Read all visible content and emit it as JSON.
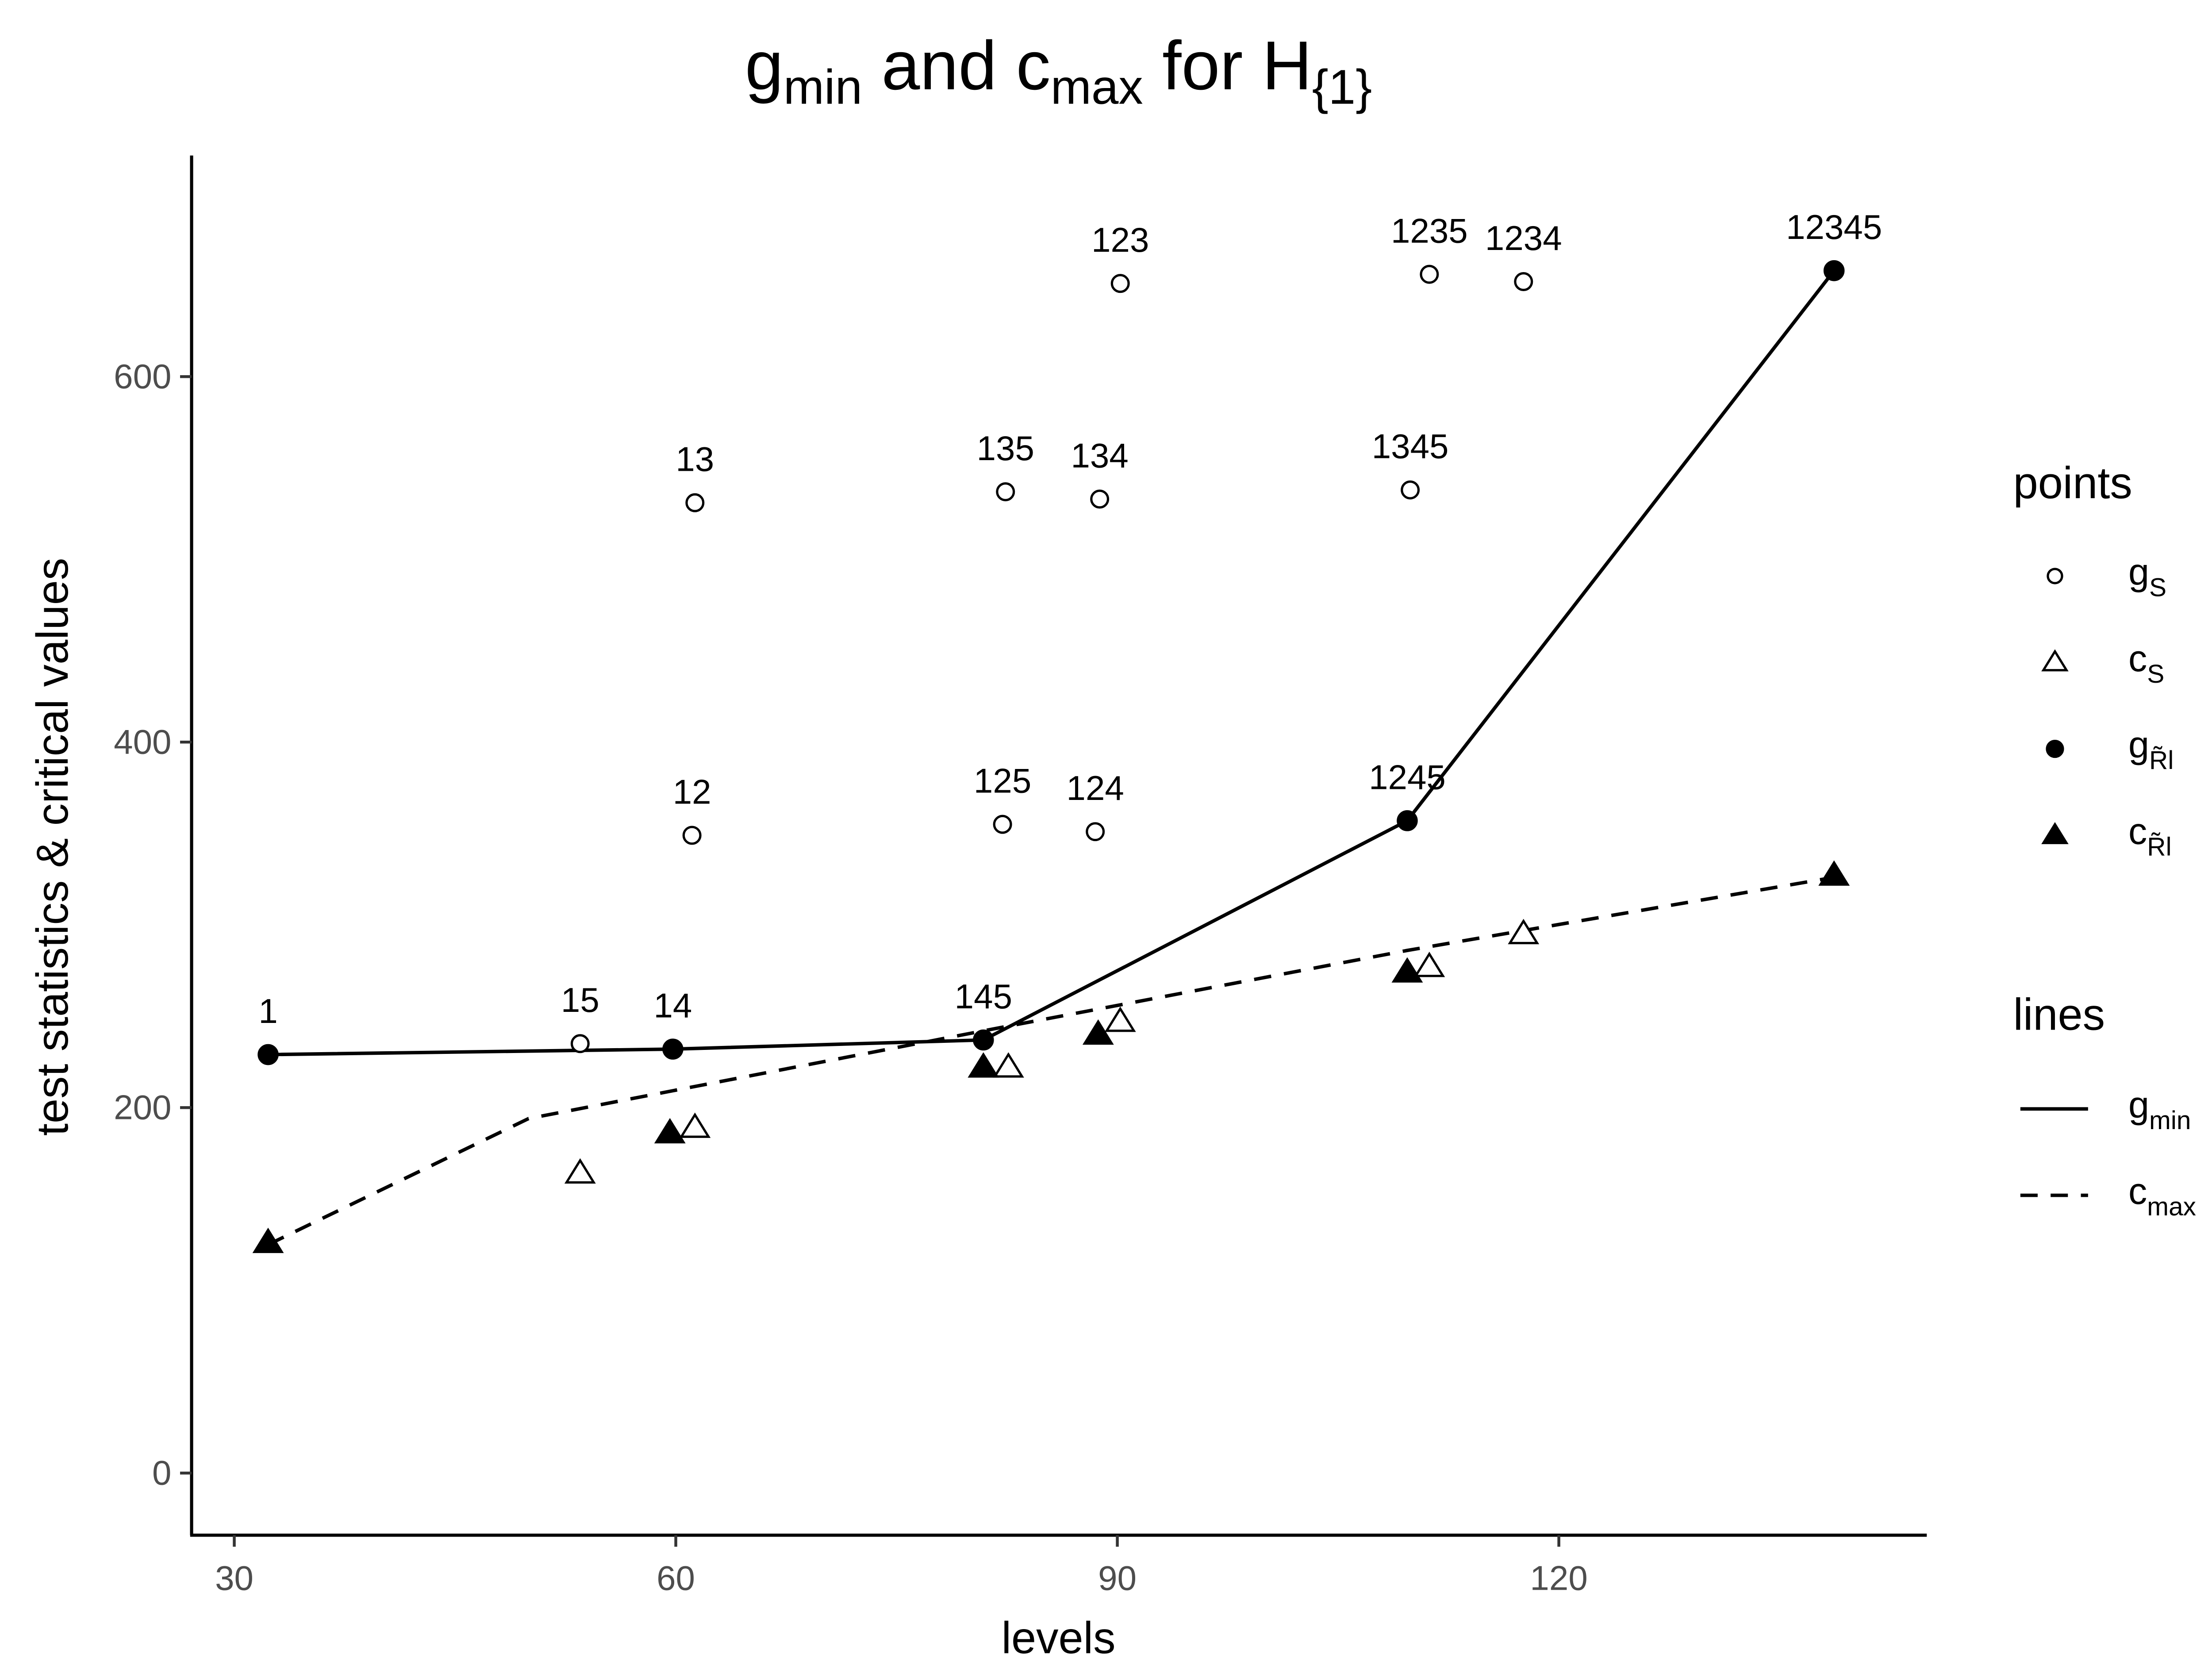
{
  "chart_data": {
    "type": "scatter",
    "title": [
      {
        "text": "g"
      },
      {
        "text": "min",
        "sub": true
      },
      {
        "text": " and c"
      },
      {
        "text": "max",
        "sub": true
      },
      {
        "text": " for H"
      },
      {
        "text": "{1}",
        "sub": true
      }
    ],
    "x_label": "levels",
    "y_label": "test statistics & critical values",
    "xlim": [
      27.1,
      145
    ],
    "ylim": [
      -34,
      721
    ],
    "xticks": [
      30,
      60,
      90,
      120
    ],
    "yticks": [
      0,
      200,
      400,
      600
    ],
    "legend_position": "right",
    "points_title": "points",
    "lines_title": "lines",
    "series": [
      {
        "name": "g",
        "subscript": "S",
        "marker": "circle-open",
        "color": "#000000",
        "x": [
          53.5,
          61.1,
          61.3,
          82.2,
          88.5,
          82.4,
          88.8,
          90.2,
          109.9,
          111.2,
          117.6
        ],
        "values": [
          235,
          349,
          531,
          355,
          351,
          537,
          533,
          651,
          538,
          656,
          652
        ],
        "labels": [
          "15",
          "12",
          "13",
          "125",
          "124",
          "135",
          "134",
          "123",
          "1345",
          "1235",
          "1234"
        ]
      },
      {
        "name": "c",
        "subscript": "S",
        "marker": "triangle-open",
        "color": "#000000",
        "x": [
          53.5,
          61.3,
          82.6,
          90.2,
          111.2,
          117.6
        ],
        "values": [
          164,
          189,
          222,
          247,
          277,
          295
        ]
      },
      {
        "name": "g",
        "subscript": "R̃l",
        "marker": "circle-filled",
        "color": "#000000",
        "x": [
          32.3,
          59.8,
          80.9,
          109.7,
          138.7
        ],
        "values": [
          229,
          232,
          237,
          357,
          658
        ],
        "labels": [
          "1",
          "14",
          "145",
          "1245",
          "12345"
        ]
      },
      {
        "name": "c",
        "subscript": "R̃l",
        "marker": "triangle-filled",
        "color": "#000000",
        "x": [
          32.3,
          59.6,
          80.9,
          88.7,
          109.7,
          138.7
        ],
        "values": [
          126,
          186,
          222,
          240,
          274,
          327
        ]
      }
    ],
    "lines": [
      {
        "name": "g",
        "subscript": "min",
        "dash": "solid",
        "color": "#000000",
        "x": [
          32.3,
          59.8,
          80.9,
          109.7,
          138.7
        ],
        "values": [
          229,
          232,
          237,
          357,
          658
        ]
      },
      {
        "name": "c",
        "subscript": "max",
        "dash": "dashed",
        "color": "#000000",
        "x": [
          32.3,
          50,
          80.9,
          109.7,
          138.7
        ],
        "values": [
          125,
          194,
          242,
          286,
          326
        ]
      }
    ]
  }
}
